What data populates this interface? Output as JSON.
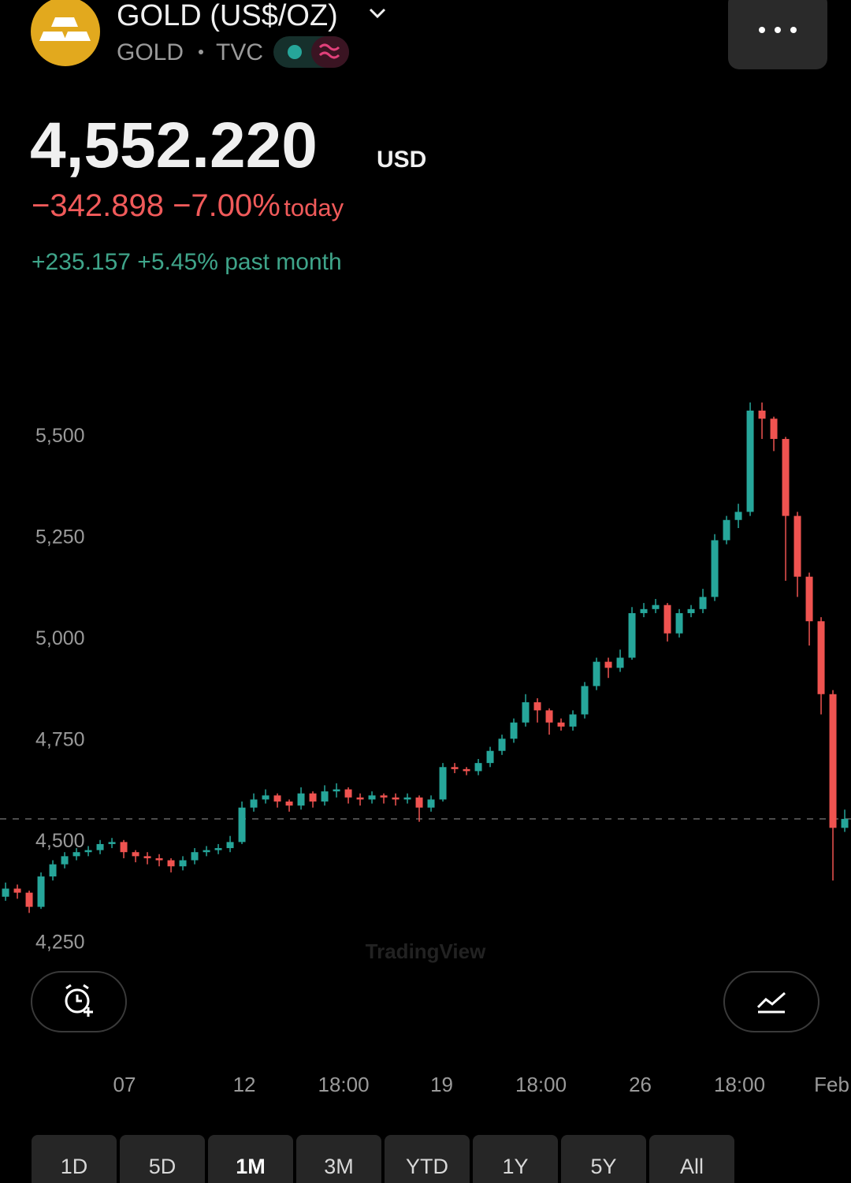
{
  "header": {
    "title": "GOLD (US$/OZ)",
    "symbol": "GOLD",
    "exchange": "TVC",
    "price": "4,552.220",
    "currency": "USD",
    "change": "−342.898 −7.00%",
    "change_period": "today",
    "month_change": "+235.157 +5.45%",
    "month_period": "past month"
  },
  "chart_data": {
    "type": "candlestick",
    "up_color": "#26a69a",
    "down_color": "#ef5350",
    "open": [
      4360,
      4380,
      4370,
      4335,
      4410,
      4440,
      4460,
      4470,
      4475,
      4490,
      4495,
      4470,
      4460,
      4455,
      4450,
      4435,
      4450,
      4470,
      4475,
      4480,
      4495,
      4580,
      4600,
      4610,
      4595,
      4585,
      4615,
      4595,
      4620,
      4625,
      4605,
      4600,
      4610,
      4605,
      4600,
      4605,
      4580,
      4600,
      4680,
      4675,
      4670,
      4690,
      4720,
      4750,
      4790,
      4840,
      4820,
      4790,
      4780,
      4810,
      4880,
      4940,
      4925,
      4950,
      5060,
      5070,
      5080,
      5010,
      5060,
      5070,
      5100,
      5240,
      5290,
      5310,
      5560,
      5540,
      5490,
      5300,
      5150,
      5040,
      4860,
      4530
    ],
    "high": [
      4395,
      4390,
      4375,
      4420,
      4450,
      4470,
      4480,
      4485,
      4500,
      4505,
      4500,
      4475,
      4470,
      4465,
      4455,
      4460,
      4480,
      4485,
      4490,
      4510,
      4595,
      4615,
      4625,
      4615,
      4600,
      4630,
      4620,
      4635,
      4640,
      4630,
      4615,
      4620,
      4615,
      4615,
      4615,
      4610,
      4610,
      4690,
      4690,
      4680,
      4700,
      4730,
      4760,
      4800,
      4860,
      4850,
      4825,
      4800,
      4820,
      4890,
      4950,
      4950,
      4970,
      5075,
      5085,
      5095,
      5085,
      5070,
      5080,
      5120,
      5255,
      5300,
      5330,
      5580,
      5580,
      5545,
      5495,
      5310,
      5160,
      5050,
      4870,
      4575
    ],
    "low": [
      4350,
      4355,
      4320,
      4330,
      4400,
      4430,
      4450,
      4460,
      4465,
      4480,
      4455,
      4445,
      4440,
      4435,
      4420,
      4425,
      4440,
      4460,
      4465,
      4470,
      4490,
      4570,
      4590,
      4580,
      4570,
      4575,
      4580,
      4585,
      4605,
      4590,
      4585,
      4590,
      4590,
      4585,
      4590,
      4545,
      4570,
      4595,
      4665,
      4660,
      4660,
      4680,
      4710,
      4740,
      4780,
      4790,
      4760,
      4770,
      4770,
      4800,
      4870,
      4900,
      4915,
      4945,
      5050,
      5060,
      4990,
      5000,
      5050,
      5060,
      5090,
      5230,
      5270,
      5300,
      5490,
      5460,
      5140,
      5100,
      4980,
      4810,
      4400,
      4520
    ],
    "close": [
      4380,
      4370,
      4335,
      4410,
      4440,
      4460,
      4470,
      4475,
      4490,
      4495,
      4470,
      4460,
      4455,
      4450,
      4435,
      4450,
      4470,
      4475,
      4480,
      4495,
      4580,
      4600,
      4610,
      4595,
      4585,
      4615,
      4595,
      4620,
      4625,
      4605,
      4600,
      4610,
      4605,
      4600,
      4605,
      4580,
      4600,
      4680,
      4675,
      4670,
      4690,
      4720,
      4750,
      4790,
      4840,
      4820,
      4790,
      4780,
      4810,
      4880,
      4940,
      4925,
      4950,
      5060,
      5070,
      5080,
      5010,
      5060,
      5070,
      5100,
      5240,
      5290,
      5310,
      5560,
      5540,
      5490,
      5300,
      5150,
      5040,
      4860,
      4530,
      4552
    ],
    "last_price": 4552.22,
    "xlim": [
      -0.47,
      71.53
    ],
    "xticks": [
      {
        "value": 10.06,
        "label": "07"
      },
      {
        "value": 20.2,
        "label": "12"
      },
      {
        "value": 28.6,
        "label": "18:00"
      },
      {
        "value": 36.9,
        "label": "19"
      },
      {
        "value": 45.3,
        "label": "18:00"
      },
      {
        "value": 53.7,
        "label": "26"
      },
      {
        "value": 62.1,
        "label": "18:00"
      },
      {
        "value": 69.9,
        "label": "Feb"
      }
    ],
    "ylim": [
      4200,
      5700
    ],
    "yticks": [
      {
        "value": 4250,
        "label": "4,250"
      },
      {
        "value": 4500,
        "label": "4,500"
      },
      {
        "value": 4750,
        "label": "4,750"
      },
      {
        "value": 5000,
        "label": "5,000"
      },
      {
        "value": 5250,
        "label": "5,250"
      },
      {
        "value": 5500,
        "label": "5,500"
      }
    ],
    "watermark": "TradingView"
  },
  "range_buttons": [
    "1D",
    "5D",
    "1M",
    "3M",
    "YTD",
    "1Y",
    "5Y",
    "All"
  ],
  "selected_range": 2
}
